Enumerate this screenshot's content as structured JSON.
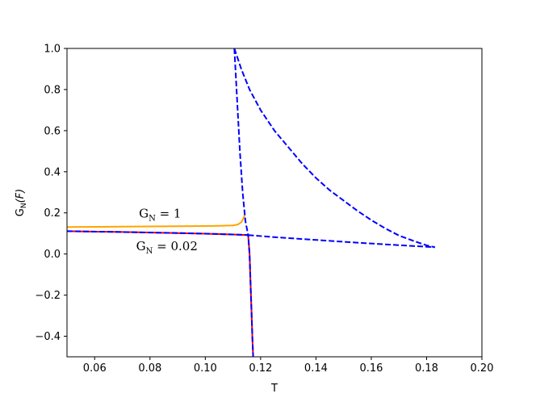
{
  "chart_data": {
    "type": "line",
    "xlabel": "T",
    "ylabel_main": "G",
    "ylabel_sub": "N",
    "ylabel_arg": "(F)",
    "xlim": [
      0.05,
      0.2
    ],
    "ylim": [
      -0.5,
      1.0
    ],
    "x_ticks": [
      0.06,
      0.08,
      0.1,
      0.12,
      0.14,
      0.16,
      0.18,
      0.2
    ],
    "x_tick_labels": [
      "0.06",
      "0.08",
      "0.10",
      "0.12",
      "0.14",
      "0.16",
      "0.18",
      "0.20"
    ],
    "y_ticks": [
      -0.4,
      -0.2,
      0.0,
      0.2,
      0.4,
      0.6,
      0.8,
      1.0
    ],
    "y_tick_labels": [
      "−0.4",
      "−0.2",
      "0.0",
      "0.2",
      "0.4",
      "0.6",
      "0.8",
      "1.0"
    ],
    "grid": false,
    "series": [
      {
        "color": "#ffa500",
        "style": "solid",
        "points": [
          [
            0.05,
            0.131
          ],
          [
            0.06,
            0.132
          ],
          [
            0.07,
            0.133
          ],
          [
            0.08,
            0.134
          ],
          [
            0.09,
            0.135
          ],
          [
            0.1,
            0.136
          ],
          [
            0.105,
            0.137
          ],
          [
            0.108,
            0.138
          ],
          [
            0.11,
            0.139
          ],
          [
            0.111,
            0.141
          ],
          [
            0.112,
            0.145
          ],
          [
            0.113,
            0.155
          ],
          [
            0.1135,
            0.165
          ],
          [
            0.114,
            0.18
          ],
          [
            0.1142,
            0.19
          ]
        ]
      },
      {
        "color": "#ff0000",
        "style": "solid",
        "points": [
          [
            0.05,
            0.111
          ],
          [
            0.07,
            0.107
          ],
          [
            0.09,
            0.102
          ],
          [
            0.1,
            0.099
          ],
          [
            0.105,
            0.097
          ],
          [
            0.11,
            0.095
          ],
          [
            0.112,
            0.094
          ],
          [
            0.114,
            0.093
          ],
          [
            0.1155,
            0.092
          ],
          [
            0.116,
            0.0
          ],
          [
            0.1165,
            -0.2
          ],
          [
            0.117,
            -0.4
          ],
          [
            0.1173,
            -0.5
          ]
        ]
      },
      {
        "color": "#0000ff",
        "style": "dashed",
        "points": [
          [
            0.05,
            0.111
          ],
          [
            0.07,
            0.107
          ],
          [
            0.09,
            0.102
          ],
          [
            0.1,
            0.099
          ],
          [
            0.105,
            0.097
          ],
          [
            0.11,
            0.095
          ],
          [
            0.112,
            0.094
          ],
          [
            0.114,
            0.093
          ],
          [
            0.1155,
            0.092
          ],
          [
            0.116,
            0.0
          ],
          [
            0.1165,
            -0.2
          ],
          [
            0.117,
            -0.4
          ],
          [
            0.1173,
            -0.5
          ]
        ]
      },
      {
        "color": "#0000ff",
        "style": "dashed",
        "points": [
          [
            0.1105,
            1.0
          ],
          [
            0.1115,
            0.75
          ],
          [
            0.1125,
            0.5
          ],
          [
            0.1135,
            0.3
          ],
          [
            0.1145,
            0.16
          ],
          [
            0.1155,
            0.092
          ]
        ]
      },
      {
        "color": "#0000ff",
        "style": "dashed",
        "points": [
          [
            0.1105,
            1.0
          ],
          [
            0.113,
            0.9
          ],
          [
            0.116,
            0.8
          ],
          [
            0.12,
            0.7
          ],
          [
            0.125,
            0.6
          ],
          [
            0.13,
            0.52
          ],
          [
            0.135,
            0.44
          ],
          [
            0.14,
            0.37
          ],
          [
            0.145,
            0.31
          ],
          [
            0.15,
            0.26
          ],
          [
            0.155,
            0.21
          ],
          [
            0.16,
            0.165
          ],
          [
            0.165,
            0.125
          ],
          [
            0.17,
            0.09
          ],
          [
            0.175,
            0.065
          ],
          [
            0.18,
            0.042
          ],
          [
            0.183,
            0.033
          ]
        ]
      },
      {
        "color": "#0000ff",
        "style": "dashed",
        "points": [
          [
            0.1155,
            0.092
          ],
          [
            0.125,
            0.082
          ],
          [
            0.135,
            0.073
          ],
          [
            0.145,
            0.064
          ],
          [
            0.155,
            0.055
          ],
          [
            0.165,
            0.047
          ],
          [
            0.175,
            0.039
          ],
          [
            0.183,
            0.033
          ]
        ]
      }
    ],
    "annotations": [
      {
        "main": "G",
        "sub": "N",
        "rest": " = 1",
        "x": 0.076,
        "y": 0.178
      },
      {
        "main": "G",
        "sub": "N",
        "rest": " = 0.02",
        "x": 0.075,
        "y": 0.018
      }
    ]
  }
}
